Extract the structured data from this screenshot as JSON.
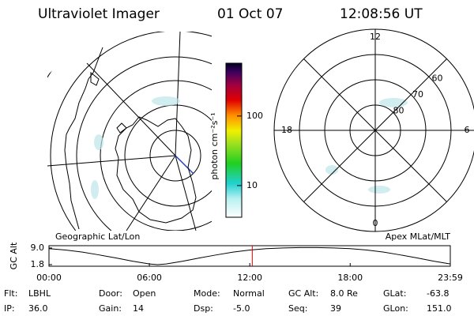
{
  "header": {
    "title": "Ultraviolet Imager",
    "date": "01 Oct 07",
    "time": "12:08:56 UT"
  },
  "geo_map": {
    "label": "Geographic Lat/Lon"
  },
  "apex_map": {
    "label": "Apex MLat/MLT",
    "mlt_ticks": [
      12,
      6,
      0,
      18
    ],
    "lat_ticks": [
      60,
      70,
      80
    ],
    "rlim": [
      90,
      50
    ]
  },
  "colorbar": {
    "label": "photon cm⁻²s⁻¹",
    "log": true,
    "lim": [
      3.5,
      575
    ],
    "ticks": [
      10,
      100
    ]
  },
  "chart_data": {
    "type": "line",
    "ylabel": "GC Alt",
    "x": [
      0,
      1,
      2,
      3,
      4,
      5,
      6,
      6.5,
      7,
      8,
      9,
      10,
      11,
      12,
      13,
      14,
      15,
      15.5,
      16,
      17,
      18,
      19,
      20,
      21,
      22,
      23,
      23.983
    ],
    "series": [
      {
        "name": "GC Alt",
        "color": "#000000",
        "values": [
          8.7,
          8.1,
          7.2,
          6.0,
          4.7,
          3.3,
          2.1,
          1.8,
          2.1,
          3.3,
          4.7,
          6.0,
          7.2,
          8.1,
          8.7,
          9.0,
          9.2,
          9.2,
          9.2,
          9.0,
          8.7,
          8.1,
          7.2,
          6.0,
          4.7,
          3.3,
          2.1
        ]
      }
    ],
    "current_time": 12.149,
    "current_color": "#e00000",
    "xlim": [
      0,
      23.983
    ],
    "xticks": [
      {
        "value": 0,
        "label": "00:00"
      },
      {
        "value": 6,
        "label": "06:00"
      },
      {
        "value": 12,
        "label": "12:00"
      },
      {
        "value": 18,
        "label": "18:00"
      },
      {
        "value": 23.983,
        "label": "23:59"
      }
    ],
    "ylim": [
      1.1,
      10.0
    ],
    "yticks": [
      1.8,
      {
        "value": 9,
        "label": "9.0"
      }
    ]
  },
  "info": {
    "rows": [
      [
        {
          "label": "Flt:",
          "value": "LBHL"
        },
        {
          "label": "Door:",
          "value": "Open"
        },
        {
          "label": "Mode:",
          "value": "Normal"
        },
        {
          "label": "GC Alt:",
          "value": "8.0 Re"
        },
        {
          "label": "GLat:",
          "value": "-63.8"
        }
      ],
      [
        {
          "label": "IP:",
          "value": "36.0"
        },
        {
          "label": "Gain:",
          "value": "14"
        },
        {
          "label": "Dsp:",
          "value": "-5.0"
        },
        {
          "label": "Seq:",
          "value": "39"
        },
        {
          "label": "GLon:",
          "value": "151.0"
        }
      ]
    ]
  }
}
